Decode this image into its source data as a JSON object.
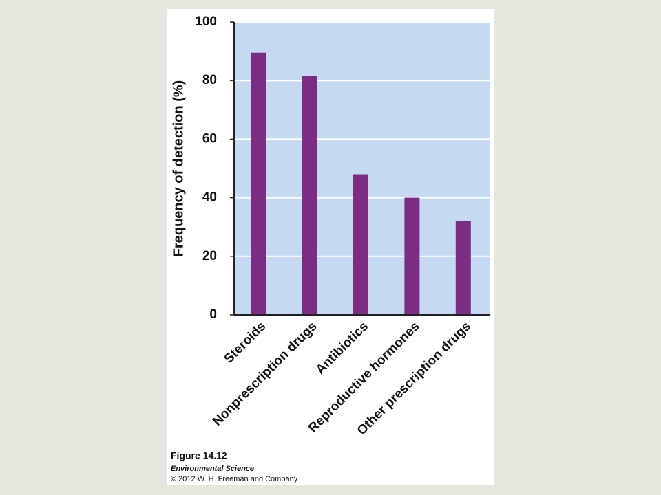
{
  "chart_data": {
    "type": "bar",
    "y_label": "Frequency of detection (%)",
    "categories": [
      "Steroids",
      "Nonprescription drugs",
      "Antibiotics",
      "Reproductive hormones",
      "Other prescription drugs"
    ],
    "values": [
      89.5,
      81.5,
      48,
      40,
      32
    ],
    "color": "#7b2d83",
    "plot_background": "#c6d9f2",
    "ylim": [
      0,
      100
    ],
    "yticks": [
      0,
      20,
      40,
      60,
      80,
      100
    ],
    "grid": true
  },
  "caption": {
    "figure": "Figure 14.12",
    "book": "Environmental Science",
    "copyright": "© 2012 W. H. Freeman and Company"
  }
}
